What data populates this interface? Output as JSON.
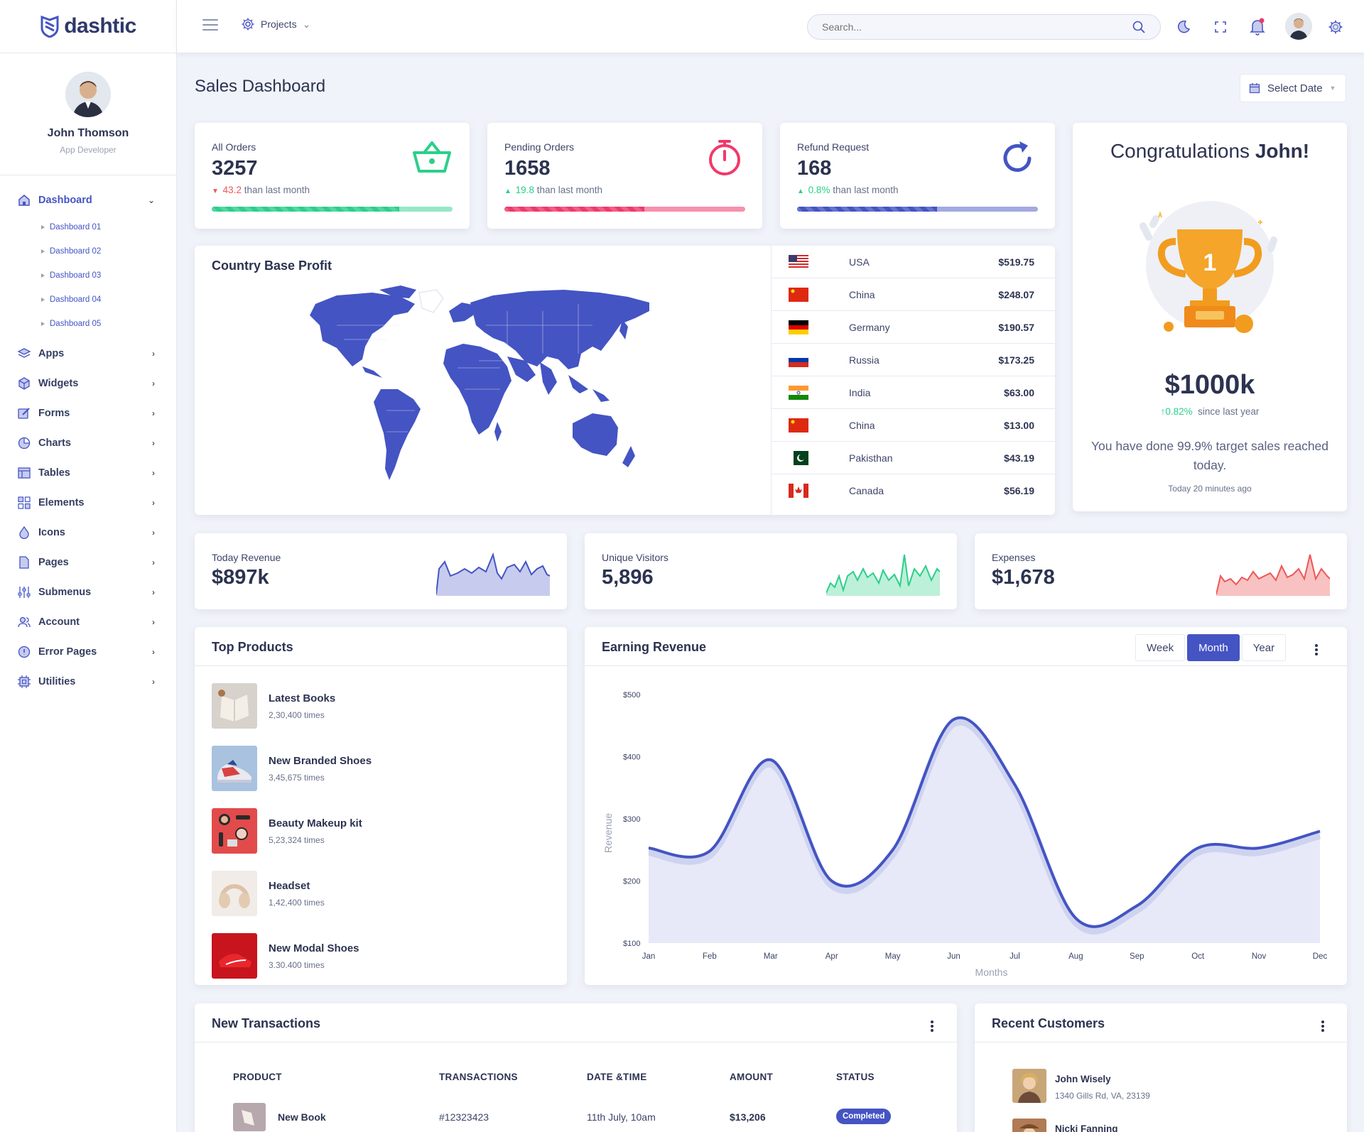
{
  "brand": {
    "name": "dashtic"
  },
  "profile": {
    "name": "John Thomson",
    "role": "App Developer"
  },
  "sidebar": {
    "dashboard": {
      "label": "Dashboard",
      "sub": [
        "Dashboard 01",
        "Dashboard 02",
        "Dashboard 03",
        "Dashboard 04",
        "Dashboard 05"
      ]
    },
    "items": [
      {
        "label": "Apps",
        "icon": "layers-icon"
      },
      {
        "label": "Widgets",
        "icon": "cube-icon"
      },
      {
        "label": "Forms",
        "icon": "edit-icon"
      },
      {
        "label": "Charts",
        "icon": "pie-chart-icon"
      },
      {
        "label": "Tables",
        "icon": "table-icon"
      },
      {
        "label": "Elements",
        "icon": "grid-icon"
      },
      {
        "label": "Icons",
        "icon": "droplet-icon"
      },
      {
        "label": "Pages",
        "icon": "file-icon"
      },
      {
        "label": "Submenus",
        "icon": "sliders-icon"
      },
      {
        "label": "Account",
        "icon": "users-icon"
      },
      {
        "label": "Error Pages",
        "icon": "alert-circle-icon"
      },
      {
        "label": "Utilities",
        "icon": "cpu-icon"
      }
    ]
  },
  "topbar": {
    "projects_label": "Projects",
    "search_placeholder": "Search..."
  },
  "page": {
    "title": "Sales Dashboard",
    "select_date": "Select Date"
  },
  "stats": [
    {
      "label": "All Orders",
      "value": "3257",
      "change": "43.2",
      "change_text": " than last month",
      "direction": "down",
      "progress": 0.78,
      "color": "#2bcf8b",
      "light": "#95e8c4"
    },
    {
      "label": "Pending Orders",
      "value": "1658",
      "change": "19.8",
      "change_text": " than last month",
      "direction": "up",
      "progress": 0.58,
      "color": "#f0396b",
      "light": "#f791ad"
    },
    {
      "label": "Refund Request",
      "value": "168",
      "change": "0.8%",
      "change_text": " than last month",
      "direction": "up",
      "progress": 0.58,
      "color": "#4454c3",
      "light": "#a1a9e1"
    }
  ],
  "congrats": {
    "title_prefix": "Congratulations ",
    "title_name": "John!",
    "amount": "$1000k",
    "change": "0.82%",
    "since": "since last year",
    "message": "You have done 99.9% target sales reached today.",
    "time": "Today 20 minutes ago",
    "trophy_label": "1"
  },
  "country_profit": {
    "title": "Country Base Profit",
    "rows": [
      {
        "country": "USA",
        "amount": "$519.75",
        "flag": "us"
      },
      {
        "country": "China",
        "amount": "$248.07",
        "flag": "cn"
      },
      {
        "country": "Germany",
        "amount": "$190.57",
        "flag": "de"
      },
      {
        "country": "Russia",
        "amount": "$173.25",
        "flag": "ru"
      },
      {
        "country": "India",
        "amount": "$63.00",
        "flag": "in"
      },
      {
        "country": "China",
        "amount": "$13.00",
        "flag": "cn"
      },
      {
        "country": "Pakisthan",
        "amount": "$43.19",
        "flag": "pk"
      },
      {
        "country": "Canada",
        "amount": "$56.19",
        "flag": "ca"
      }
    ]
  },
  "minis": [
    {
      "label": "Today Revenue",
      "value": "$897k",
      "color": "#4454c3",
      "fill": "#c7cbee"
    },
    {
      "label": "Unique Visitors",
      "value": "5,896",
      "color": "#2bcf8b",
      "fill": "#bdf0d8"
    },
    {
      "label": "Expenses",
      "value": "$1,678",
      "color": "#f05656",
      "fill": "#f8c2c2"
    }
  ],
  "top_products": {
    "title": "Top Products",
    "items": [
      {
        "name": "Latest Books",
        "times": "2,30,400 times"
      },
      {
        "name": "New Branded Shoes",
        "times": "3,45,675 times"
      },
      {
        "name": "Beauty Makeup kit",
        "times": "5,23,324 times"
      },
      {
        "name": "Headset",
        "times": "1,42,400 times"
      },
      {
        "name": "New Modal Shoes",
        "times": "3.30.400 times"
      }
    ]
  },
  "earning": {
    "title": "Earning Revenue",
    "tabs": [
      "Week",
      "Month",
      "Year"
    ],
    "active_tab": "Month"
  },
  "chart_data": {
    "type": "area",
    "title": "Earning Revenue",
    "xlabel": "Months",
    "ylabel": "Revenue",
    "categories": [
      "Jan",
      "Feb",
      "Mar",
      "Apr",
      "May",
      "Jun",
      "Jul",
      "Aug",
      "Sep",
      "Oct",
      "Nov",
      "Dec"
    ],
    "series": [
      {
        "values": [
          253,
          248,
          395,
          200,
          250,
          460,
          355,
          140,
          160,
          253,
          253,
          280
        ]
      }
    ],
    "y_ticks": [
      "$100",
      "$200",
      "$300",
      "$400",
      "$500"
    ],
    "ylim": [
      100,
      500
    ],
    "grid": false,
    "color": "#4454c3"
  },
  "transactions": {
    "title": "New Transactions",
    "headers": [
      "PRODUCT",
      "TRANSACTIONS",
      "DATE &TIME",
      "AMOUNT",
      "STATUS"
    ],
    "rows": [
      {
        "product": "New Book",
        "id": "#12323423",
        "date": "11th July, 10am",
        "amount": "$13,206",
        "status": "Completed"
      }
    ]
  },
  "customers": {
    "title": "Recent Customers",
    "items": [
      {
        "name": "John Wisely",
        "address": "1340 Gills Rd, VA, 23139"
      },
      {
        "name": "Nicki Fanning",
        "address": ""
      }
    ]
  }
}
